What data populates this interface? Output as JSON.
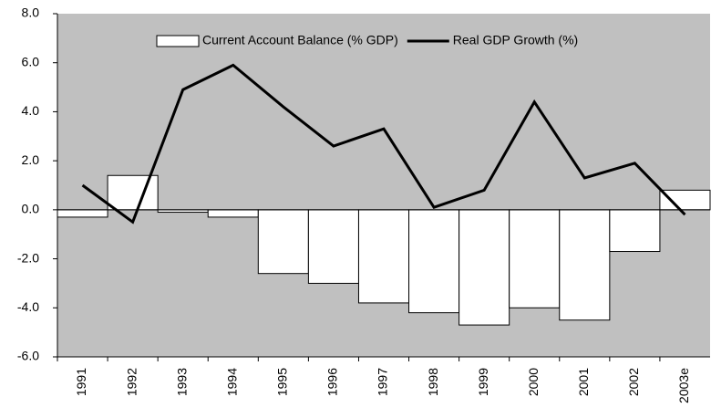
{
  "chart_data": {
    "type": "bar",
    "categories": [
      "1991",
      "1992",
      "1993",
      "1994",
      "1995",
      "1996",
      "1997",
      "1998",
      "1999",
      "2000",
      "2001",
      "2002",
      "2003e"
    ],
    "series": [
      {
        "name": "Current Account Balance (% GDP)",
        "type": "bar",
        "color": "#ffffff",
        "values": [
          -0.3,
          1.4,
          -0.1,
          -0.3,
          -2.6,
          -3.0,
          -3.8,
          -4.2,
          -4.7,
          -4.0,
          -4.5,
          -1.7,
          0.8
        ]
      },
      {
        "name": "Real GDP Growth (%)",
        "type": "line",
        "color": "#000000",
        "values": [
          1.0,
          -0.5,
          4.9,
          5.9,
          4.2,
          2.6,
          3.3,
          0.1,
          0.8,
          4.4,
          1.3,
          1.9,
          -0.2
        ]
      }
    ],
    "ylim": [
      -6,
      8
    ],
    "yticks": [
      {
        "value": -6,
        "label": "-6.0"
      },
      {
        "value": -4,
        "label": "-4.0"
      },
      {
        "value": -2,
        "label": "-2.0"
      },
      {
        "value": 0,
        "label": "0.0"
      },
      {
        "value": 2,
        "label": "2.0"
      },
      {
        "value": 4,
        "label": "4.0"
      },
      {
        "value": 6,
        "label": "6.0"
      },
      {
        "value": 8,
        "label": "8.0"
      }
    ],
    "background": "#c0c0c0"
  }
}
